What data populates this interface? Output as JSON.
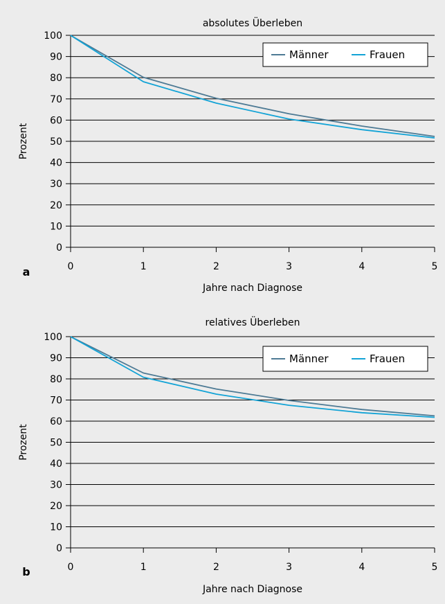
{
  "chart_data": [
    {
      "type": "line",
      "panel_label": "a",
      "title": "absolutes Überleben",
      "xlabel": "Jahre nach Diagnose",
      "ylabel": "Prozent",
      "x": [
        0,
        1,
        2,
        3,
        4,
        5
      ],
      "x_ticks": [
        "0",
        "1",
        "2",
        "3",
        "4",
        "5"
      ],
      "y_ticks": [
        "0",
        "10",
        "20",
        "30",
        "40",
        "50",
        "60",
        "70",
        "80",
        "90",
        "100"
      ],
      "xlim": [
        0,
        5
      ],
      "ylim": [
        0,
        100
      ],
      "grid": "horizontal",
      "legend_position": "top-right",
      "series": [
        {
          "name": "Männer",
          "color": "#4d7a94",
          "values": [
            100,
            80.2,
            70.3,
            63.0,
            57.2,
            52.3
          ]
        },
        {
          "name": "Frauen",
          "color": "#12a3d6",
          "values": [
            100,
            78.1,
            68.0,
            60.5,
            55.5,
            51.6
          ]
        }
      ]
    },
    {
      "type": "line",
      "panel_label": "b",
      "title": "relatives Überleben",
      "xlabel": "Jahre nach Diagnose",
      "ylabel": "Prozent",
      "x": [
        0,
        1,
        2,
        3,
        4,
        5
      ],
      "x_ticks": [
        "0",
        "1",
        "2",
        "3",
        "4",
        "5"
      ],
      "y_ticks": [
        "0",
        "10",
        "20",
        "30",
        "40",
        "50",
        "60",
        "70",
        "80",
        "90",
        "100"
      ],
      "xlim": [
        0,
        5
      ],
      "ylim": [
        0,
        100
      ],
      "grid": "horizontal",
      "legend_position": "top-right",
      "series": [
        {
          "name": "Männer",
          "color": "#4d7a94",
          "values": [
            100,
            82.8,
            75.2,
            69.8,
            65.5,
            62.5
          ]
        },
        {
          "name": "Frauen",
          "color": "#12a3d6",
          "values": [
            100,
            80.8,
            72.8,
            67.5,
            64.0,
            61.8
          ]
        }
      ]
    }
  ]
}
